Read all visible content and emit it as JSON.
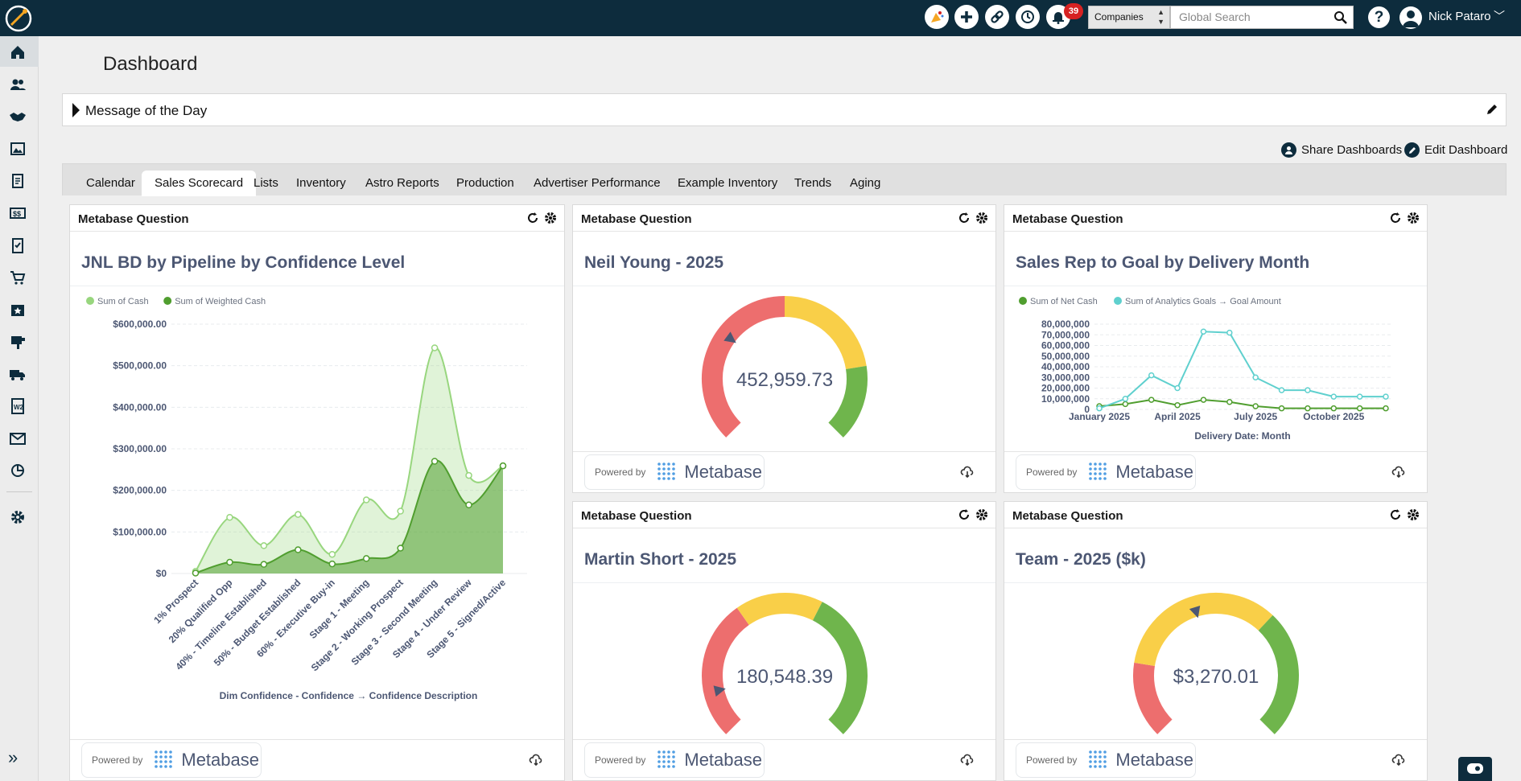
{
  "user": {
    "name": "Nick Pataro"
  },
  "header": {
    "notifications_count": "39",
    "entity_select": "Companies",
    "search_placeholder": "Global Search",
    "help_label": "?"
  },
  "sidebar": {
    "items": [
      "home-icon",
      "contacts-icon",
      "deals-icon",
      "media-icon",
      "orders-icon",
      "invoices-icon",
      "tasks-icon",
      "cart-icon",
      "calendar-icon",
      "mail-order-icon",
      "delivery-icon",
      "w2-icon",
      "email-icon",
      "analytics-icon"
    ],
    "settings": "gear-icon",
    "expand": "»"
  },
  "page": {
    "title": "Dashboard"
  },
  "motd": {
    "label": "Message of the Day"
  },
  "actions": {
    "share": "Share Dashboards",
    "edit": "Edit Dashboard"
  },
  "tabs": [
    "Calendar",
    "Sales Scorecard",
    "Lists",
    "Inventory",
    "Astro Reports",
    "Production",
    "Advertiser Performance",
    "Example Inventory",
    "Trends",
    "Aging"
  ],
  "active_tab": "Sales Scorecard",
  "cards": {
    "header_label": "Metabase Question",
    "powered_by": "Powered by",
    "metabase": "Metabase",
    "pipeline": {
      "title": "JNL BD by Pipeline by Confidence Level"
    },
    "neil": {
      "title": "Neil Young - 2025",
      "value": "452,959.73"
    },
    "sales_rep": {
      "title": "Sales Rep to Goal by Delivery Month"
    },
    "martin": {
      "title": "Martin Short - 2025",
      "value": "180,548.39"
    },
    "team": {
      "title": "Team - 2025 ($k)",
      "value": "$3,270.01"
    }
  },
  "chart_data": [
    {
      "type": "area",
      "title": "JNL BD by Pipeline by Confidence Level",
      "xlabel": "Dim Confidence - Confidence → Confidence Description",
      "ylabel": "",
      "ylim": [
        0,
        600000
      ],
      "yticks": [
        "$0",
        "$100,000.00",
        "$200,000.00",
        "$300,000.00",
        "$400,000.00",
        "$500,000.00",
        "$600,000.00"
      ],
      "categories": [
        "1% Prospect",
        "20% Qualified Opp",
        "40% - Timeline Established",
        "50% - Budget Established",
        "60% - Executive Buy-in",
        "Stage 1 - Meeting",
        "Stage 2 - Working Prospect",
        "Stage 3 - Second Meeting",
        "Stage 4 - Under Review",
        "Stage 5 - Signed/Active"
      ],
      "legend": "top-left",
      "series": [
        {
          "name": "Sum of Cash",
          "color": "#98d67e",
          "values": [
            5000,
            135000,
            67000,
            142000,
            46000,
            177000,
            150000,
            543000,
            236000,
            259000
          ]
        },
        {
          "name": "Sum of Weighted Cash",
          "color": "#509e2f",
          "values": [
            1000,
            27000,
            22000,
            57000,
            23000,
            36000,
            61000,
            270000,
            165000,
            259000
          ]
        }
      ]
    },
    {
      "type": "line",
      "title": "Sales Rep to Goal by Delivery Month",
      "xlabel": "Delivery Date: Month",
      "ylabel": "",
      "ylim": [
        0,
        80000000
      ],
      "yticks": [
        "0",
        "10,000,000",
        "20,000,000",
        "30,000,000",
        "40,000,000",
        "50,000,000",
        "60,000,000",
        "70,000,000",
        "80,000,000"
      ],
      "xticks": [
        "January 2025",
        "April 2025",
        "July 2025",
        "October 2025"
      ],
      "x": [
        "2025-01",
        "2025-02",
        "2025-03",
        "2025-04",
        "2025-05",
        "2025-06",
        "2025-07",
        "2025-08",
        "2025-09",
        "2025-10",
        "2025-11",
        "2025-12"
      ],
      "legend": "top-left",
      "series": [
        {
          "name": "Sum of Net Cash",
          "color": "#509e2f",
          "values": [
            3000000,
            5000000,
            9000000,
            4000000,
            9000000,
            7000000,
            3000000,
            1000000,
            1000000,
            1000000,
            1000000,
            1000000
          ]
        },
        {
          "name": "Sum of Analytics Goals → Goal Amount",
          "color": "#5fd0ce",
          "values": [
            1000000,
            10000000,
            32000000,
            20000000,
            73000000,
            72000000,
            30000000,
            18000000,
            18000000,
            12000000,
            12000000,
            12000000
          ]
        }
      ]
    }
  ],
  "gauges": {
    "neil": {
      "value": 452959.73,
      "min": 0,
      "max": 1500000,
      "segments": [
        {
          "to": 0.5,
          "color": "#ed6e6e"
        },
        {
          "to": 0.8,
          "color": "#f9cf48"
        },
        {
          "to": 1,
          "color": "#6fb54c"
        }
      ]
    },
    "martin": {
      "value": 180548.39,
      "min": 0,
      "max": 1500000,
      "segments": [
        {
          "to": 0.37,
          "color": "#ed6e6e"
        },
        {
          "to": 0.6,
          "color": "#f9cf48"
        },
        {
          "to": 1,
          "color": "#6fb54c"
        }
      ]
    },
    "team": {
      "value": 3270.01,
      "min": 0,
      "max": 7500,
      "segments": [
        {
          "to": 0.2,
          "color": "#ed6e6e"
        },
        {
          "to": 0.66,
          "color": "#f9cf48"
        },
        {
          "to": 1,
          "color": "#6fb54c"
        }
      ]
    }
  }
}
